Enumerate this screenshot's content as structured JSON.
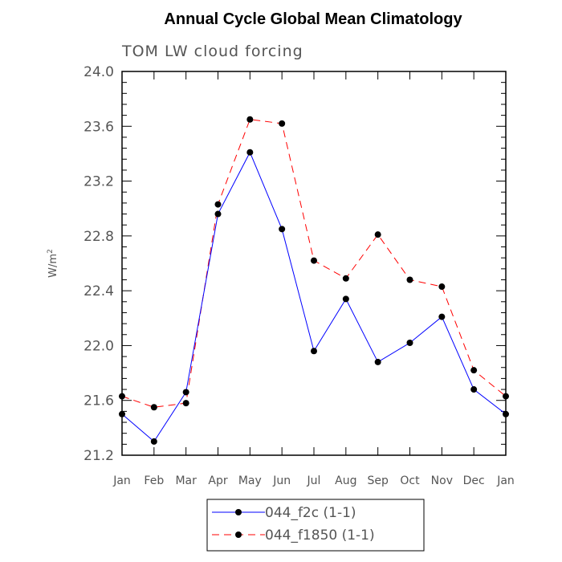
{
  "chart_data": {
    "type": "line",
    "title": "Annual Cycle Global Mean Climatology",
    "subtitle": "TOM LW cloud forcing",
    "ylabel_base": "W/m",
    "ylabel_sup": "2",
    "ylim": [
      21.2,
      24.0
    ],
    "yticks": [
      "21.2",
      "21.6",
      "22.0",
      "22.4",
      "22.8",
      "23.2",
      "23.6",
      "24.0"
    ],
    "categories": [
      "Jan",
      "Feb",
      "Mar",
      "Apr",
      "May",
      "Jun",
      "Jul",
      "Aug",
      "Sep",
      "Oct",
      "Nov",
      "Dec",
      "Jan"
    ],
    "series": [
      {
        "name": "044_f2c (1-1)",
        "color": "#0000ff",
        "dash": "solid",
        "values": [
          21.5,
          21.3,
          21.66,
          22.96,
          23.41,
          22.85,
          21.96,
          22.34,
          21.88,
          22.02,
          22.21,
          21.68,
          21.5
        ]
      },
      {
        "name": "044_f1850 (1-1)",
        "color": "#ff0000",
        "dash": "dashed",
        "values": [
          21.63,
          21.55,
          21.58,
          23.03,
          23.65,
          23.62,
          22.62,
          22.49,
          22.81,
          22.48,
          22.43,
          21.82,
          21.63
        ]
      }
    ]
  }
}
